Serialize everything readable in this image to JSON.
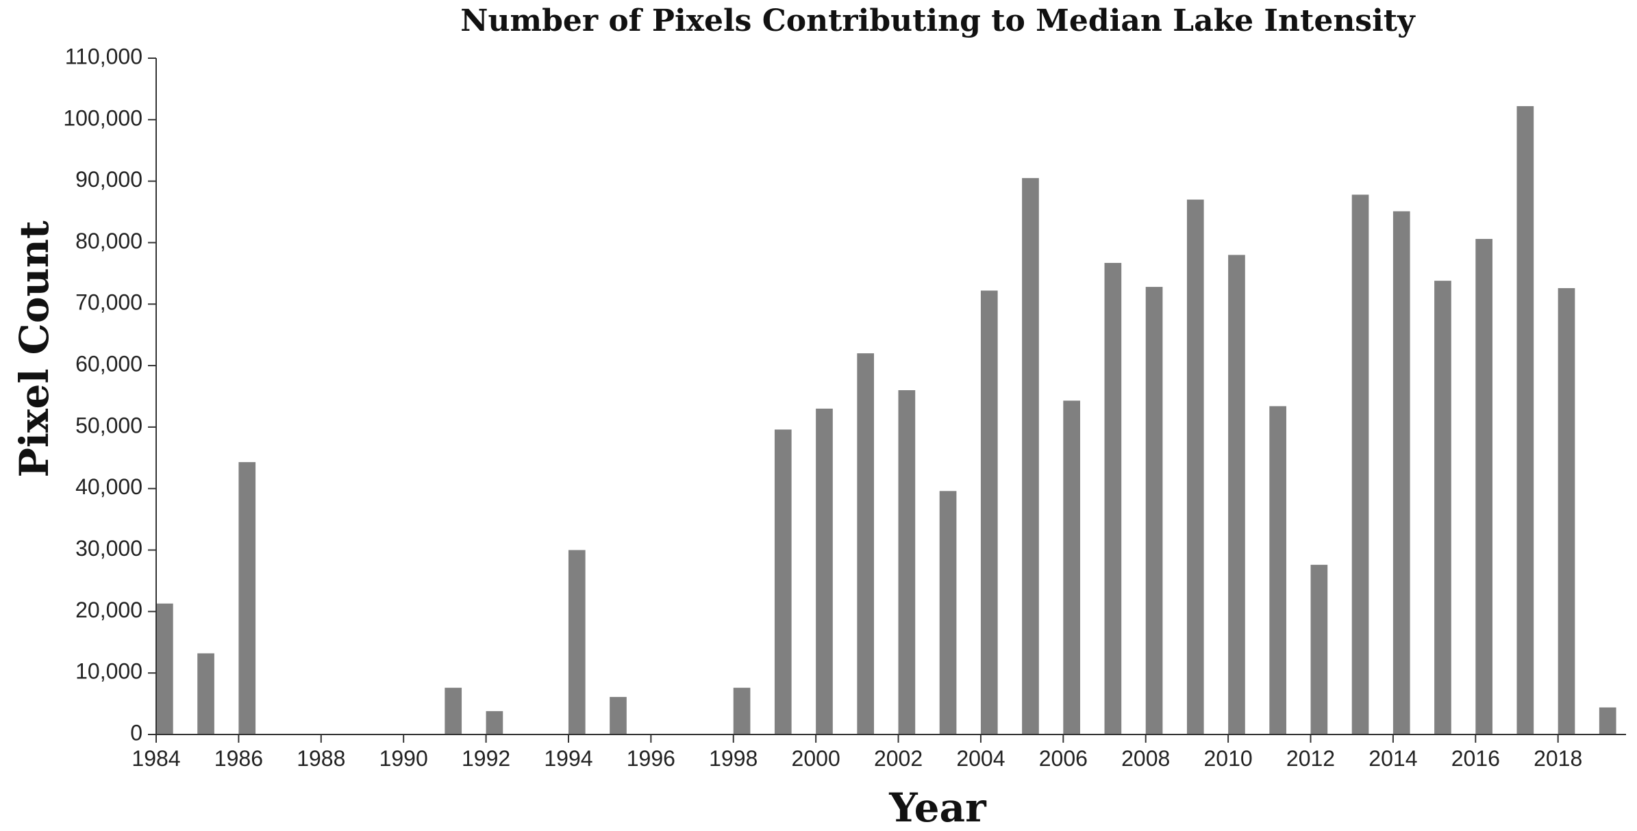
{
  "chart_data": {
    "type": "bar",
    "title": "Number of Pixels Contributing to Median Lake Intensity",
    "xlabel": "Year",
    "ylabel": "Pixel Count",
    "ylim": [
      0,
      110000
    ],
    "yticks": [
      0,
      10000,
      20000,
      30000,
      40000,
      50000,
      60000,
      70000,
      80000,
      90000,
      100000,
      110000
    ],
    "ytick_labels": [
      "0",
      "10,000",
      "20,000",
      "30,000",
      "40,000",
      "50,000",
      "60,000",
      "70,000",
      "80,000",
      "90,000",
      "100,000",
      "110,000"
    ],
    "xticks": [
      "1984",
      "1986",
      "1988",
      "1990",
      "1992",
      "1994",
      "1996",
      "1998",
      "2000",
      "2002",
      "2004",
      "2006",
      "2008",
      "2010",
      "2012",
      "2014",
      "2016",
      "2018"
    ],
    "categories": [
      1984,
      1985,
      1986,
      1987,
      1988,
      1989,
      1990,
      1991,
      1992,
      1993,
      1994,
      1995,
      1996,
      1997,
      1998,
      1999,
      2000,
      2001,
      2002,
      2003,
      2004,
      2005,
      2006,
      2007,
      2008,
      2009,
      2010,
      2011,
      2012,
      2013,
      2014,
      2015,
      2016,
      2017,
      2018,
      2019
    ],
    "values": [
      21300,
      13200,
      44300,
      0,
      0,
      0,
      0,
      7600,
      3800,
      0,
      30000,
      6100,
      0,
      0,
      7600,
      49600,
      53000,
      62000,
      56000,
      39600,
      72200,
      90500,
      54300,
      76700,
      72800,
      87000,
      78000,
      53400,
      27600,
      87800,
      85100,
      73800,
      80600,
      102200,
      72600,
      4400
    ],
    "bar_color": "#808080",
    "grid": false,
    "legend": "none"
  }
}
